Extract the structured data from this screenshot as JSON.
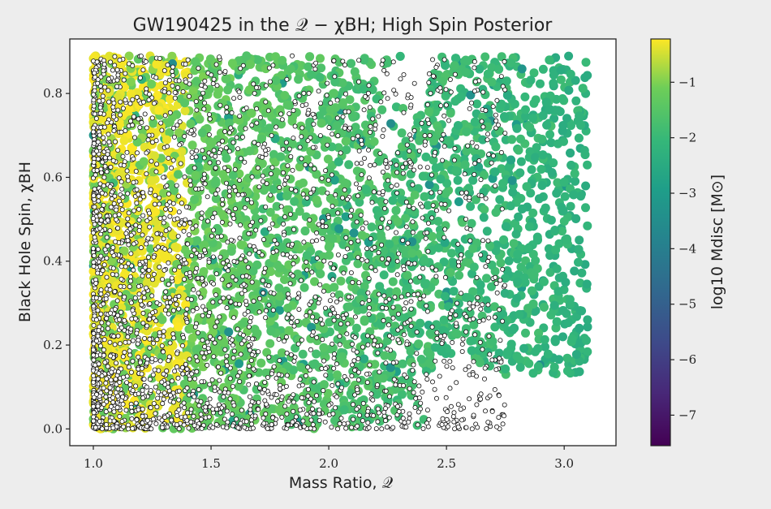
{
  "chart_data": {
    "type": "scatter",
    "title": "GW190425 in the 𝒬 − χBH; High Spin Posterior",
    "xlabel": "Mass Ratio, 𝒬",
    "ylabel": "Black Hole Spin, χBH",
    "xlim": [
      0.9,
      3.22
    ],
    "ylim": [
      -0.04,
      0.93
    ],
    "xticks": [
      "1.0",
      "1.5",
      "2.0",
      "2.5",
      "3.0"
    ],
    "xtick_values": [
      1.0,
      1.5,
      2.0,
      2.5,
      3.0
    ],
    "yticks": [
      "0.0",
      "0.2",
      "0.4",
      "0.6",
      "0.8"
    ],
    "ytick_values": [
      0.0,
      0.2,
      0.4,
      0.6,
      0.8
    ],
    "grid": false,
    "colorbar": {
      "label": "log10 Mdisc [M⊙]",
      "colormap": "viridis",
      "range": [
        -7.55,
        -0.22
      ],
      "ticks": [
        "−1",
        "−2",
        "−3",
        "−4",
        "−5",
        "−6",
        "−7"
      ],
      "tick_values": [
        -1,
        -2,
        -3,
        -4,
        -5,
        -6,
        -7
      ]
    },
    "series": [
      {
        "name": "",
        "description_of_marks": "colored circles, color = log10 Mdisc",
        "region": {
          "x": [
            1.0,
            3.1
          ],
          "y": [
            0.0,
            0.89
          ]
        },
        "color_value_typical": -0.6
      },
      {
        "name": "",
        "description_of_marks": "white circles with black edge",
        "region": {
          "x": [
            1.0,
            2.75
          ],
          "y": [
            0.0,
            0.89
          ]
        },
        "color": "#ffffff"
      }
    ]
  }
}
